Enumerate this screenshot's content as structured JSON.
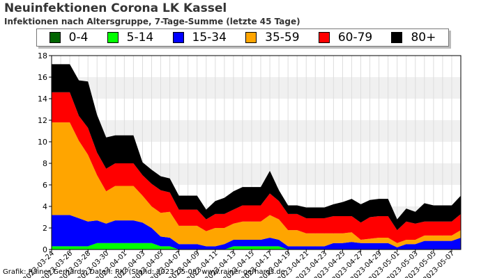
{
  "chart_data": {
    "type": "area",
    "stacked": true,
    "title": "Neuinfektionen Corona LK Kassel",
    "subtitle": "Infektionen nach Altersgruppe, 7-Tage-Summe (letzte 45 Tage)",
    "xlabel": "",
    "ylabel": "",
    "ylim": [
      0,
      18
    ],
    "yticks": [
      0,
      2,
      4,
      6,
      8,
      10,
      12,
      14,
      16,
      18
    ],
    "grid": true,
    "legend_position": "top",
    "x": [
      "2023-03-24",
      "2023-03-25",
      "2023-03-26",
      "2023-03-27",
      "2023-03-28",
      "2023-03-29",
      "2023-03-30",
      "2023-03-31",
      "2023-04-01",
      "2023-04-02",
      "2023-04-03",
      "2023-04-04",
      "2023-04-05",
      "2023-04-06",
      "2023-04-07",
      "2023-04-08",
      "2023-04-09",
      "2023-04-10",
      "2023-04-11",
      "2023-04-12",
      "2023-04-13",
      "2023-04-14",
      "2023-04-15",
      "2023-04-16",
      "2023-04-17",
      "2023-04-18",
      "2023-04-19",
      "2023-04-20",
      "2023-04-21",
      "2023-04-22",
      "2023-04-23",
      "2023-04-24",
      "2023-04-25",
      "2023-04-26",
      "2023-04-27",
      "2023-04-28",
      "2023-04-29",
      "2023-04-30",
      "2023-05-01",
      "2023-05-02",
      "2023-05-03",
      "2023-05-04",
      "2023-05-05",
      "2023-05-06",
      "2023-05-07",
      "2023-05-08"
    ],
    "xtick_labels": [
      "2023-03-24",
      "2023-03-26",
      "2023-03-28",
      "2023-03-30",
      "2023-04-01",
      "2023-04-03",
      "2023-04-05",
      "2023-04-07",
      "2023-04-09",
      "2023-04-11",
      "2023-04-13",
      "2023-04-15",
      "2023-04-17",
      "2023-04-19",
      "2023-04-21",
      "2023-04-23",
      "2023-04-25",
      "2023-04-27",
      "2023-04-29",
      "2023-05-01",
      "2023-05-03",
      "2023-05-05",
      "2023-05-07"
    ],
    "series": [
      {
        "name": "0-4",
        "color": "#006400",
        "values": [
          0,
          0,
          0,
          0,
          0,
          0,
          0,
          0,
          0,
          0,
          0,
          0,
          0,
          0,
          0,
          0,
          0,
          0,
          0,
          0,
          0,
          0,
          0,
          0,
          0,
          0,
          0,
          0,
          0,
          0,
          0,
          0,
          0,
          0,
          0,
          0,
          0,
          0,
          0,
          0,
          0,
          0,
          0,
          0,
          0,
          0
        ]
      },
      {
        "name": "5-14",
        "color": "#00ff00",
        "values": [
          0.3,
          0.3,
          0.3,
          0.3,
          0.3,
          0.6,
          0.6,
          0.6,
          0.6,
          0.6,
          0.6,
          0.6,
          0.3,
          0.3,
          0,
          0,
          0,
          0,
          0,
          0,
          0.3,
          0.3,
          0.3,
          0.3,
          0.3,
          0.3,
          0,
          0,
          0,
          0,
          0,
          0,
          0,
          0,
          0,
          0,
          0,
          0,
          0,
          0,
          0,
          0,
          0,
          0,
          0,
          0
        ]
      },
      {
        "name": "15-34",
        "color": "#0000ff",
        "values": [
          2.9,
          2.9,
          2.9,
          2.6,
          2.3,
          2.1,
          1.8,
          2.1,
          2.1,
          2.1,
          1.9,
          1.4,
          0.9,
          0.8,
          0.5,
          0.5,
          0.5,
          0.3,
          0.3,
          0.5,
          0.6,
          0.6,
          0.6,
          0.6,
          0.8,
          0.6,
          0.3,
          0.3,
          0.3,
          0.3,
          0.3,
          0.6,
          0.6,
          0.7,
          0.6,
          0.6,
          0.6,
          0.6,
          0.2,
          0.5,
          0.5,
          0.8,
          0.8,
          0.8,
          0.8,
          1.1
        ]
      },
      {
        "name": "35-59",
        "color": "#ffa500",
        "values": [
          8.6,
          8.6,
          8.6,
          7.2,
          6.2,
          4.2,
          3.0,
          3.2,
          3.2,
          3.2,
          2.5,
          2.0,
          2.2,
          2.4,
          1.7,
          1.7,
          1.7,
          1.4,
          1.7,
          1.5,
          1.5,
          1.7,
          1.7,
          1.7,
          2.1,
          1.9,
          1.5,
          1.5,
          1.2,
          1.2,
          1.2,
          0.9,
          0.9,
          0.9,
          0.3,
          0.4,
          0.5,
          0.5,
          0.4,
          0.4,
          0.4,
          0.5,
          0.5,
          0.5,
          0.5,
          0.7
        ]
      },
      {
        "name": "60-79",
        "color": "#ff0000",
        "values": [
          2.8,
          2.8,
          2.8,
          2.3,
          2.5,
          2.1,
          2.1,
          2.1,
          2.1,
          2.1,
          1.9,
          2.1,
          2.1,
          1.8,
          1.5,
          1.5,
          1.5,
          1.1,
          1.3,
          1.3,
          1.3,
          1.5,
          1.5,
          1.5,
          2.0,
          1.7,
          1.5,
          1.5,
          1.4,
          1.4,
          1.4,
          1.6,
          1.6,
          1.5,
          1.6,
          2.0,
          2.0,
          2.0,
          1.2,
          1.7,
          1.5,
          1.3,
          1.3,
          1.3,
          1.3,
          1.5
        ]
      },
      {
        "name": "80+",
        "color": "#000000",
        "values": [
          2.6,
          2.6,
          2.6,
          3.3,
          4.3,
          3.5,
          2.9,
          2.6,
          2.6,
          2.6,
          1.2,
          1.3,
          1.3,
          1.3,
          1.3,
          1.3,
          1.3,
          0.9,
          1.2,
          1.5,
          1.7,
          1.7,
          1.7,
          1.7,
          2.1,
          1.0,
          0.8,
          0.8,
          1.0,
          1.0,
          1.0,
          1.1,
          1.3,
          1.6,
          1.7,
          1.6,
          1.6,
          1.6,
          1.0,
          1.2,
          1.1,
          1.7,
          1.5,
          1.5,
          1.5,
          1.7
        ]
      }
    ]
  },
  "footer": "Grafik: Rainer Gerhards, Daten: RKI (Stand: 2023-05-08) www.rainer-gerhards.de"
}
